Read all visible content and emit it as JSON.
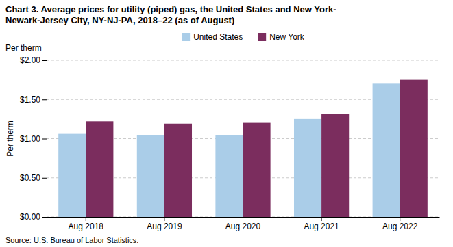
{
  "chart_data": {
    "type": "bar",
    "title": [
      "Chart 3. Average prices for utility (piped) gas, the United States and New York-",
      "Newark-Jersey City, NY-NJ-PA, 2018–22 (as of August)"
    ],
    "ylabel": "Per therm",
    "source": "Source: U.S. Bureau of Labor Statistics.",
    "categories": [
      "Aug 2018",
      "Aug 2019",
      "Aug 2020",
      "Aug 2021",
      "Aug 2022"
    ],
    "series": [
      {
        "name": "United States",
        "color": "#aacde8",
        "values": [
          1.06,
          1.04,
          1.04,
          1.25,
          1.7
        ]
      },
      {
        "name": "New York",
        "color": "#7b2d5e",
        "values": [
          1.22,
          1.19,
          1.2,
          1.31,
          1.75
        ]
      }
    ],
    "ylim": [
      0.0,
      2.0
    ],
    "yticks": [
      {
        "value": 0.0,
        "label": "$0.00"
      },
      {
        "value": 0.5,
        "label": "$0.50"
      },
      {
        "value": 1.0,
        "label": "$1.00"
      },
      {
        "value": 1.5,
        "label": "$1.50"
      },
      {
        "value": 2.0,
        "label": "$2.00"
      }
    ],
    "grid": true,
    "legend": "top"
  }
}
